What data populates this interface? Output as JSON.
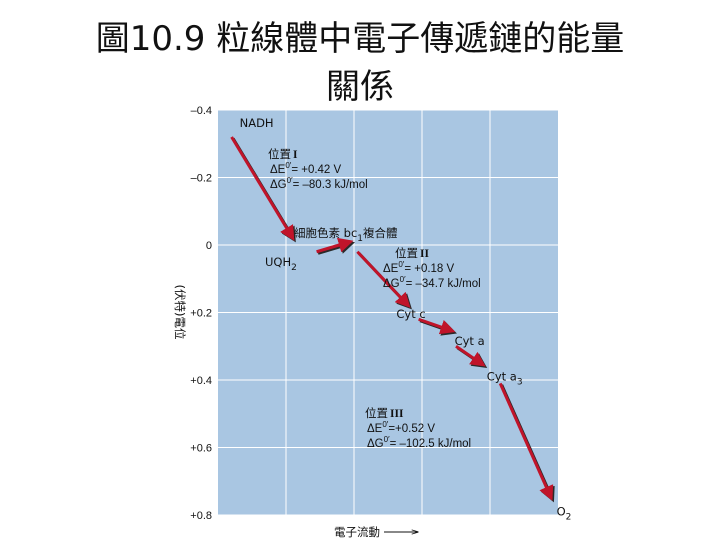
{
  "title": {
    "line1": "圖10.9 粒線體中電子傳遞鏈的能量",
    "line2": "關係"
  },
  "colors": {
    "plot_bg": "#a9c6e2",
    "grid": "#ffffff",
    "arrow": "#c0142a",
    "arrow_shadow": "#2a2a2a"
  },
  "chart_data": {
    "type": "line",
    "ylabel": "(伏特)電位",
    "xlabel": "電子流動",
    "ylim": [
      -0.4,
      0.8
    ],
    "yticks": [
      "–0.4",
      "–0.2",
      "0",
      "+0.2",
      "+0.4",
      "+0.6",
      "+0.8"
    ],
    "ytick_values": [
      -0.4,
      -0.2,
      0,
      0.2,
      0.4,
      0.6,
      0.8
    ],
    "xlim": [
      0,
      10
    ],
    "grid_x": [
      2,
      4,
      6,
      8
    ],
    "carriers": [
      {
        "label": "NADH",
        "sub": "",
        "x": 0.4,
        "y": -0.32
      },
      {
        "label": "UQH",
        "sub": "2",
        "x": 2.2,
        "y": 0.0
      },
      {
        "label": "細胞色素 bc",
        "sub": "1",
        "suffix": "複合體",
        "x": 4.0,
        "y": 0.0
      },
      {
        "label": "Cyt c",
        "sub": "",
        "x": 5.6,
        "y": 0.18
      },
      {
        "label": "Cyt a",
        "sub": "",
        "x": 6.9,
        "y": 0.26
      },
      {
        "label": "Cyt a",
        "sub": "3",
        "x": 8.2,
        "y": 0.36
      },
      {
        "label": "O",
        "sub": "2",
        "x": 9.9,
        "y": 0.76
      }
    ],
    "sites": [
      {
        "name": "位置",
        "roman": "I",
        "dE": "ΔE",
        "dE_val": "= +0.42 V",
        "dG": "ΔG",
        "dG_val": "= –80.3 kJ/mol"
      },
      {
        "name": "位置",
        "roman": "II",
        "dE": "ΔE",
        "dE_val": "= +0.18 V",
        "dG": "ΔG",
        "dG_val": "= –34.7 kJ/mol"
      },
      {
        "name": "位置",
        "roman": "III",
        "dE": "ΔE",
        "dE_val": "=+0.52 V",
        "dG": "ΔG",
        "dG_val": "= –102.5 kJ/mol"
      }
    ],
    "arrows": [
      {
        "from": [
          0.4,
          -0.32
        ],
        "to": [
          2.2,
          -0.02
        ]
      },
      {
        "from": [
          2.9,
          0.02
        ],
        "to": [
          3.9,
          -0.01
        ]
      },
      {
        "from": [
          4.1,
          0.02
        ],
        "to": [
          5.6,
          0.18
        ]
      },
      {
        "from": [
          5.9,
          0.22
        ],
        "to": [
          6.9,
          0.255
        ]
      },
      {
        "from": [
          7.0,
          0.3
        ],
        "to": [
          7.8,
          0.355
        ]
      },
      {
        "from": [
          8.3,
          0.41
        ],
        "to": [
          9.8,
          0.75
        ]
      }
    ],
    "grid": true
  }
}
